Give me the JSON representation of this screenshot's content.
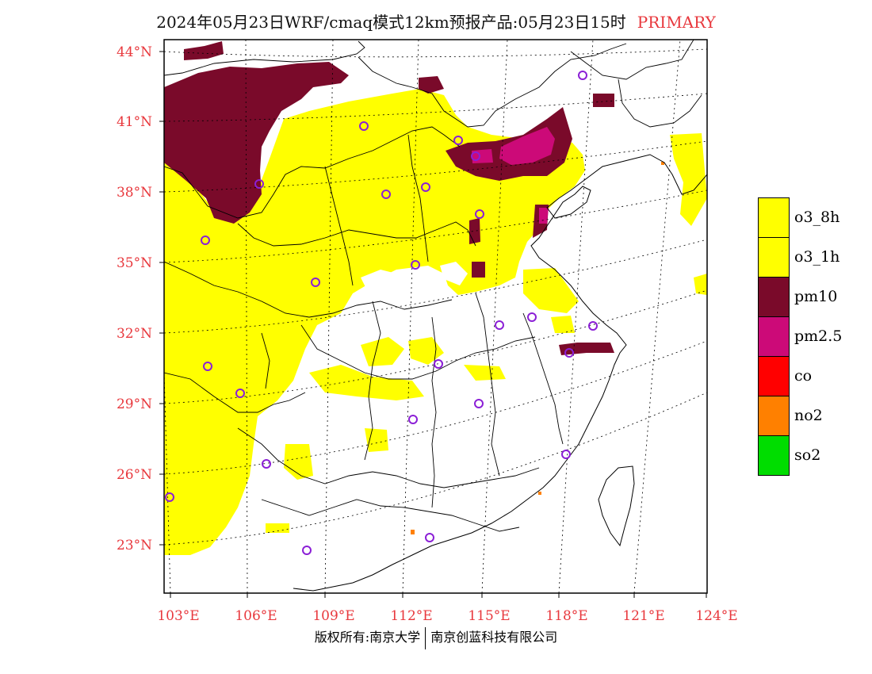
{
  "header": {
    "title": "2024年05月23日WRF/cmaq模式12km预报产品:05月23日15时",
    "tag": "PRIMARY"
  },
  "map": {
    "lat_labels": [
      "44°N",
      "41°N",
      "38°N",
      "35°N",
      "32°N",
      "29°N",
      "26°N",
      "23°N"
    ],
    "lon_labels": [
      "103°E",
      "106°E",
      "109°E",
      "112°E",
      "115°E",
      "118°E",
      "121°E",
      "124°E"
    ],
    "station_marker": "circle-icon"
  },
  "legend": {
    "items": [
      {
        "label": "o3_8h",
        "color": "#ffff00"
      },
      {
        "label": "o3_1h",
        "color": "#ffff00"
      },
      {
        "label": "pm10",
        "color": "#7a0a2a"
      },
      {
        "label": "pm2.5",
        "color": "#cc0a78"
      },
      {
        "label": "co",
        "color": "#ff0000"
      },
      {
        "label": "no2",
        "color": "#ff8000"
      },
      {
        "label": "so2",
        "color": "#00dd00"
      }
    ]
  },
  "footer": {
    "left": "版权所有:南京大学",
    "right": "南京创蓝科技有限公司"
  }
}
